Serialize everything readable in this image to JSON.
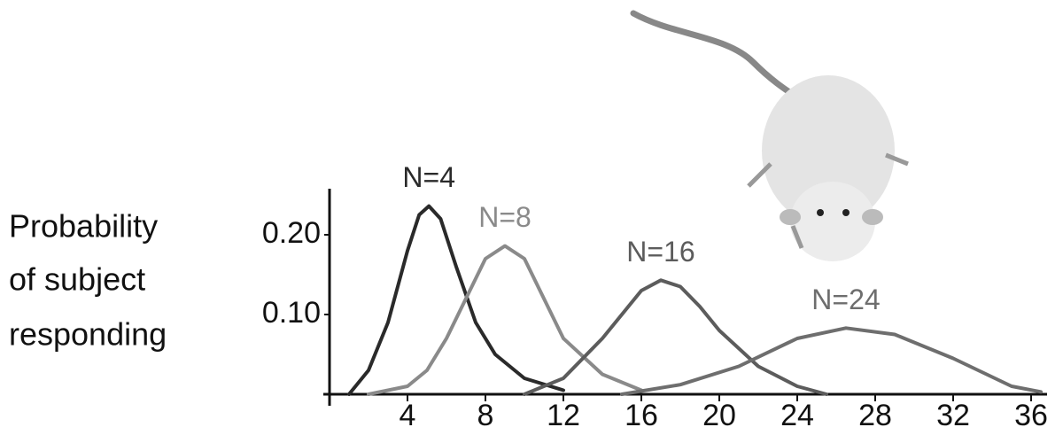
{
  "chart_data": {
    "type": "line",
    "y_label": [
      "Probability",
      "of subject",
      "responding"
    ],
    "xlim": [
      0,
      37
    ],
    "ylim": [
      0,
      0.26
    ],
    "xticks": [
      4,
      8,
      12,
      16,
      20,
      24,
      28,
      32,
      36
    ],
    "yticks": [
      {
        "value": 0.1,
        "label": "0.10"
      },
      {
        "value": 0.2,
        "label": "0.20"
      }
    ],
    "series": [
      {
        "name": "N=4",
        "color": "#2a2a2a",
        "x": [
          1,
          2,
          3,
          4,
          4.6,
          5.1,
          5.7,
          6.5,
          7.5,
          8.5,
          10,
          12
        ],
        "values": [
          0,
          0.03,
          0.09,
          0.18,
          0.225,
          0.236,
          0.22,
          0.16,
          0.09,
          0.05,
          0.02,
          0.005
        ]
      },
      {
        "name": "N=8",
        "color": "#8a8a8a",
        "x": [
          2,
          4,
          5,
          6,
          7,
          8,
          9,
          10,
          11,
          12,
          14,
          16
        ],
        "values": [
          0,
          0.01,
          0.03,
          0.07,
          0.12,
          0.17,
          0.186,
          0.17,
          0.12,
          0.07,
          0.025,
          0.005
        ]
      },
      {
        "name": "N=16",
        "color": "#5c5c5c",
        "x": [
          10,
          12,
          14,
          15,
          16,
          17,
          18,
          19,
          20,
          22,
          24,
          25.5
        ],
        "values": [
          0,
          0.02,
          0.07,
          0.1,
          0.13,
          0.143,
          0.135,
          0.11,
          0.08,
          0.035,
          0.01,
          0
        ]
      },
      {
        "name": "N=24",
        "color": "#6e6e6e",
        "x": [
          15,
          18,
          21,
          24,
          26.5,
          29,
          32,
          35,
          36.5
        ],
        "values": [
          0,
          0.012,
          0.035,
          0.07,
          0.083,
          0.075,
          0.045,
          0.01,
          0.003
        ]
      }
    ]
  }
}
